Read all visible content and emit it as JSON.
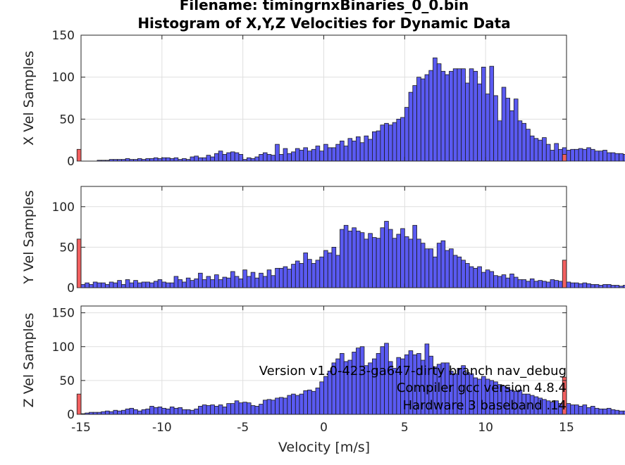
{
  "chart_data": {
    "type": "bar",
    "title_lines": [
      "Filename: timingrnxBinaries_0_0.bin",
      "Histogram of X,Y,Z Velocities for Dynamic Data"
    ],
    "xlabel": "Velocity [m/s]",
    "xlim": [
      -15,
      15
    ],
    "xticks": [
      -15,
      -10,
      -5,
      0,
      5,
      10,
      15
    ],
    "bin_width": 0.25,
    "bin_start": -15,
    "grid": true,
    "colors": {
      "bar": "#5a5af2",
      "overflow": "#f26060",
      "edge": "#1a1a1a"
    },
    "annotations": [
      "Version v1.0-423-ga647-dirty branch nav_debug",
      "Compiler gcc version 4.8.4",
      "Hardware 3 baseband .14"
    ],
    "panels": [
      {
        "ylabel": "X Vel Samples",
        "ylim": [
          0,
          150
        ],
        "yticks": [
          0,
          50,
          100,
          150
        ],
        "overflow_low": 14,
        "overflow_high": 8,
        "values": [
          0,
          0,
          0,
          0,
          1,
          1,
          1,
          2,
          2,
          2,
          2,
          3,
          2,
          2,
          3,
          2,
          3,
          3,
          4,
          3,
          4,
          4,
          3,
          4,
          2,
          3,
          2,
          5,
          6,
          4,
          4,
          7,
          5,
          9,
          12,
          8,
          10,
          11,
          10,
          8,
          2,
          4,
          3,
          5,
          8,
          10,
          8,
          7,
          20,
          8,
          15,
          9,
          11,
          15,
          13,
          16,
          12,
          14,
          18,
          12,
          20,
          16,
          16,
          20,
          24,
          18,
          27,
          24,
          29,
          22,
          30,
          26,
          35,
          36,
          43,
          45,
          43,
          46,
          50,
          52,
          64,
          82,
          90,
          100,
          98,
          103,
          108,
          123,
          116,
          107,
          103,
          107,
          110,
          110,
          110,
          93,
          110,
          107,
          92,
          112,
          80,
          113,
          78,
          48,
          88,
          75,
          60,
          74,
          48,
          45,
          38,
          30,
          27,
          25,
          28,
          20,
          13,
          21,
          14,
          16,
          13,
          14,
          14,
          15,
          14,
          16,
          14,
          12,
          12,
          13,
          10,
          10,
          9,
          9,
          8,
          7,
          10,
          7,
          11,
          6,
          11,
          7,
          6,
          8,
          4,
          5,
          4,
          5,
          4,
          4,
          6,
          3,
          5,
          2,
          2,
          2,
          2,
          2,
          3,
          2,
          1,
          1,
          1,
          1,
          1,
          1,
          1,
          1,
          1,
          1,
          1,
          1,
          1,
          1,
          1,
          0
        ]
      },
      {
        "ylabel": "Y Vel Samples",
        "ylim": [
          0,
          125
        ],
        "yticks": [
          0,
          50,
          100
        ],
        "overflow_low": 60,
        "overflow_high": 34,
        "values": [
          4,
          6,
          4,
          7,
          6,
          6,
          4,
          7,
          6,
          9,
          4,
          10,
          6,
          9,
          6,
          7,
          7,
          6,
          8,
          10,
          7,
          6,
          6,
          14,
          10,
          7,
          12,
          9,
          11,
          18,
          10,
          14,
          10,
          16,
          10,
          13,
          12,
          20,
          14,
          11,
          22,
          14,
          19,
          12,
          18,
          14,
          22,
          15,
          24,
          24,
          26,
          23,
          29,
          33,
          30,
          43,
          35,
          30,
          34,
          38,
          46,
          43,
          50,
          40,
          72,
          77,
          70,
          74,
          70,
          68,
          60,
          67,
          62,
          61,
          74,
          82,
          72,
          61,
          66,
          73,
          63,
          60,
          77,
          60,
          55,
          48,
          48,
          38,
          55,
          58,
          46,
          48,
          40,
          38,
          34,
          30,
          26,
          24,
          26,
          19,
          22,
          20,
          15,
          14,
          16,
          12,
          17,
          13,
          10,
          10,
          8,
          11,
          8,
          9,
          8,
          7,
          10,
          9,
          8,
          8,
          7,
          6,
          6,
          5,
          6,
          5,
          4,
          4,
          3,
          4,
          4,
          3,
          3,
          2,
          3,
          3,
          2,
          3,
          2,
          3,
          2,
          1,
          3,
          2,
          2,
          2,
          3,
          4,
          2,
          1,
          1,
          3,
          2,
          1,
          3,
          2
        ]
      },
      {
        "ylabel": "Z Vel Samples",
        "ylim": [
          0,
          160
        ],
        "yticks": [
          0,
          50,
          100,
          150
        ],
        "overflow_low": 30,
        "overflow_high": 55,
        "values": [
          1,
          2,
          3,
          3,
          3,
          4,
          5,
          4,
          6,
          5,
          6,
          8,
          9,
          7,
          5,
          7,
          8,
          12,
          10,
          11,
          9,
          8,
          11,
          9,
          10,
          7,
          7,
          6,
          8,
          12,
          14,
          13,
          14,
          12,
          14,
          11,
          16,
          16,
          20,
          17,
          18,
          17,
          13,
          12,
          15,
          21,
          22,
          21,
          24,
          25,
          24,
          28,
          30,
          28,
          30,
          35,
          36,
          34,
          39,
          48,
          56,
          64,
          76,
          82,
          90,
          78,
          80,
          92,
          98,
          100,
          72,
          76,
          82,
          90,
          100,
          105,
          78,
          68,
          84,
          82,
          88,
          94,
          88,
          90,
          80,
          104,
          86,
          70,
          74,
          76,
          76,
          64,
          60,
          68,
          72,
          62,
          60,
          54,
          52,
          56,
          52,
          50,
          48,
          44,
          42,
          40,
          36,
          34,
          36,
          30,
          30,
          28,
          26,
          24,
          22,
          20,
          18,
          20,
          16,
          18,
          16,
          14,
          14,
          12,
          14,
          10,
          12,
          9,
          8,
          8,
          9,
          7,
          6,
          5,
          5,
          4,
          4,
          3,
          3,
          3,
          3,
          3,
          2,
          2,
          2,
          2,
          2,
          2,
          2,
          2,
          2,
          2
        ]
      }
    ]
  }
}
